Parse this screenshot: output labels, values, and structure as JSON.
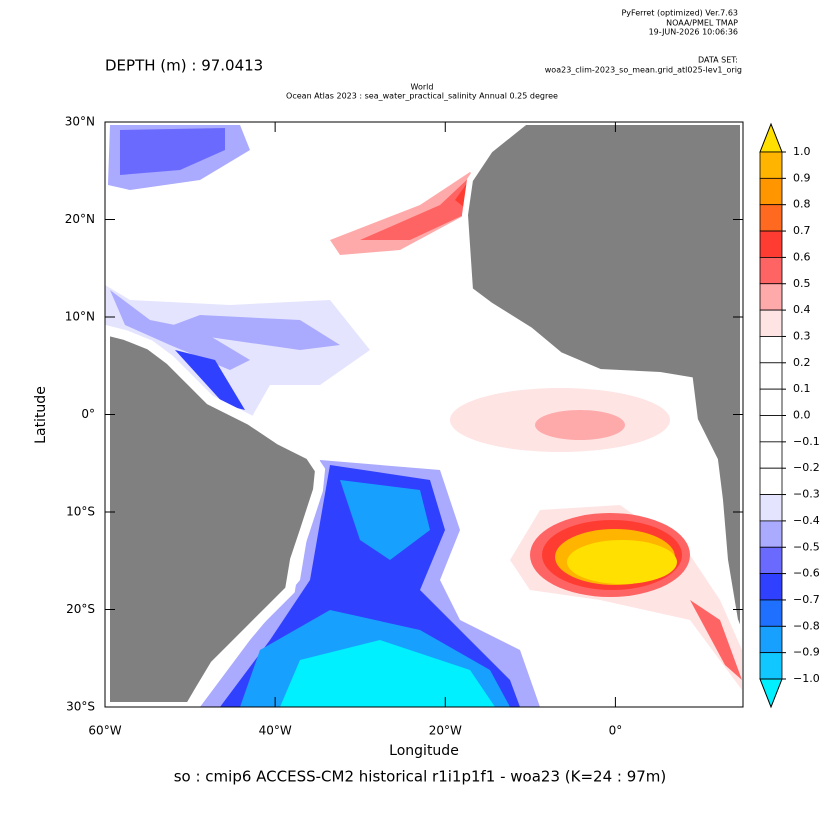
{
  "header": {
    "software": "PyFerret (optimized) Ver.7.63",
    "lab": "NOAA/PMEL TMAP",
    "date": "19-JUN-2026 10:06:36",
    "dataset_label": "DATA SET:",
    "dataset": "woa23_clim-2023_so_mean.grid_atl025-lev1_orig",
    "depth": "DEPTH (m) : 97.0413",
    "title_line1": "World",
    "title_line2": "Ocean Atlas 2023 : sea_water_practical_salinity Annual  0.25 degree"
  },
  "map": {
    "xlabel": "Longitude",
    "ylabel": "Latitude",
    "xlim": [
      -60,
      15
    ],
    "ylim": [
      -30,
      30
    ],
    "xticks": [
      {
        "value": -60,
        "label": "60°W"
      },
      {
        "value": -40,
        "label": "40°W"
      },
      {
        "value": -20,
        "label": "20°W"
      },
      {
        "value": 0,
        "label": "0°"
      }
    ],
    "yticks": [
      {
        "value": 30,
        "label": "30°N"
      },
      {
        "value": 20,
        "label": "20°N"
      },
      {
        "value": 10,
        "label": "10°N"
      },
      {
        "value": 0,
        "label": "0°"
      },
      {
        "value": -10,
        "label": "10°S"
      },
      {
        "value": -20,
        "label": "20°S"
      },
      {
        "value": -30,
        "label": "30°S"
      }
    ],
    "caption": "so : cmip6 ACCESS-CM2 historical r1i1p1f1 - woa23  (K=24 : 97m)"
  },
  "colorbar": {
    "levels": [
      {
        "value": 1,
        "label": "1.0"
      },
      {
        "value": 0.9,
        "label": "0.9"
      },
      {
        "value": 0.8,
        "label": "0.8"
      },
      {
        "value": 0.7,
        "label": "0.7"
      },
      {
        "value": 0.6,
        "label": "0.6"
      },
      {
        "value": 0.5,
        "label": "0.5"
      },
      {
        "value": 0.4,
        "label": "0.4"
      },
      {
        "value": 0.3,
        "label": "0.3"
      },
      {
        "value": 0.2,
        "label": "0.2"
      },
      {
        "value": 0.1,
        "label": "0.1"
      },
      {
        "value": 0,
        "label": "0.0"
      },
      {
        "value": -0.1,
        "label": "−0.1"
      },
      {
        "value": -0.2,
        "label": "−0.2"
      },
      {
        "value": -0.3,
        "label": "−0.3"
      },
      {
        "value": -0.4,
        "label": "−0.4"
      },
      {
        "value": -0.5,
        "label": "−0.5"
      },
      {
        "value": -0.6,
        "label": "−0.6"
      },
      {
        "value": -0.7,
        "label": "−0.7"
      },
      {
        "value": -0.8,
        "label": "−0.8"
      },
      {
        "value": -0.9,
        "label": "−0.9"
      },
      {
        "value": -1,
        "label": "−1.0"
      }
    ],
    "colors": [
      "#ffe000",
      "#ffb400",
      "#ff9600",
      "#ff6a20",
      "#ff3c32",
      "#ff6464",
      "#ffaaaa",
      "#ffe4e4",
      "#ffffff",
      "#ffffff",
      "#ffffff",
      "#ffffff",
      "#ffffff",
      "#ffffff",
      "#e4e4ff",
      "#aaaaff",
      "#6a6aff",
      "#3040ff",
      "#2070ff",
      "#18a0ff",
      "#10c8ff",
      "#00f0ff"
    ]
  }
}
